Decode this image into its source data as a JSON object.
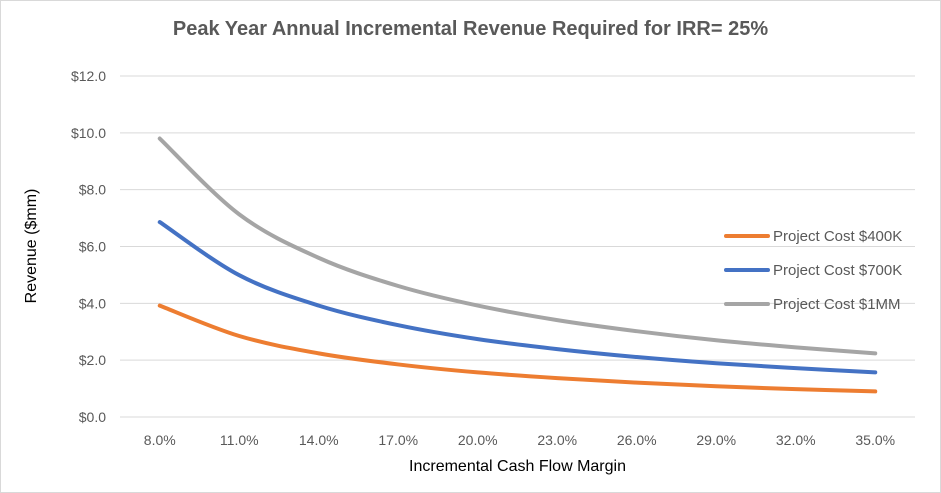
{
  "chart_data": {
    "type": "line",
    "title": "Peak Year Annual Incremental Revenue Required for IRR= 25%",
    "xlabel": "Incremental Cash Flow Margin",
    "ylabel": "Revenue ($mm)",
    "x_ticks": [
      "8.0%",
      "11.0%",
      "14.0%",
      "17.0%",
      "20.0%",
      "23.0%",
      "26.0%",
      "29.0%",
      "32.0%",
      "35.0%"
    ],
    "y_ticks": [
      "$0.0",
      "$2.0",
      "$4.0",
      "$6.0",
      "$8.0",
      "$10.0",
      "$12.0"
    ],
    "xlim": [
      6.5,
      36.5
    ],
    "ylim": [
      0,
      12
    ],
    "grid": true,
    "legend_position": "right",
    "x": [
      8,
      11,
      14,
      17,
      20,
      23,
      26,
      29,
      32,
      35
    ],
    "series": [
      {
        "name": "Project Cost $400K",
        "color": "#ed7d31",
        "values": [
          3.92,
          2.85,
          2.24,
          1.85,
          1.57,
          1.37,
          1.21,
          1.08,
          0.98,
          0.9
        ]
      },
      {
        "name": "Project Cost $700K",
        "color": "#4472c4",
        "values": [
          6.86,
          4.99,
          3.92,
          3.23,
          2.74,
          2.39,
          2.11,
          1.89,
          1.72,
          1.57
        ]
      },
      {
        "name": "Project Cost $1MM",
        "color": "#a5a5a5",
        "values": [
          9.8,
          7.13,
          5.6,
          4.61,
          3.92,
          3.41,
          3.02,
          2.7,
          2.45,
          2.24
        ]
      }
    ]
  }
}
